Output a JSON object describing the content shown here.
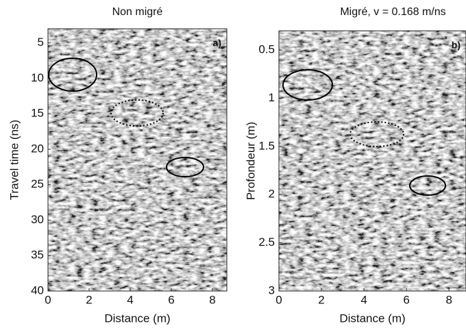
{
  "chart_data": [
    {
      "type": "image",
      "title": "Non migré",
      "panel_label": "a)",
      "xlabel": "Distance (m)",
      "ylabel": "Travel time (ns)",
      "xlim": [
        0,
        8.7
      ],
      "ylim": [
        40,
        3
      ],
      "xticks": [
        0,
        2,
        4,
        6,
        8
      ],
      "yticks": [
        5,
        10,
        15,
        20,
        25,
        30,
        35,
        40
      ]
    },
    {
      "type": "image",
      "title": "Migré, v = 0.168 m/ns",
      "panel_label": "b)",
      "xlabel": "Distance (m)",
      "ylabel": "Profondeur (m)",
      "xlim": [
        0,
        8.8
      ],
      "ylim": [
        3,
        0.3
      ],
      "xticks": [
        0,
        2,
        4,
        6,
        8
      ],
      "yticks": [
        0.5,
        1,
        1.5,
        2,
        2.5,
        3
      ]
    }
  ]
}
